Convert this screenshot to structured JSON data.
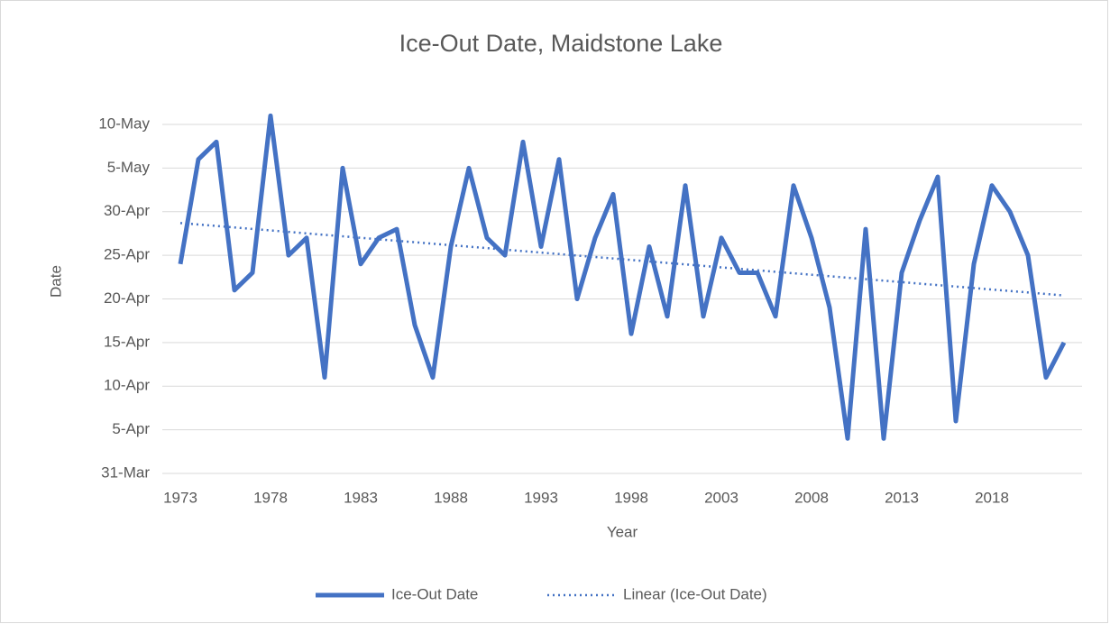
{
  "chart_data": {
    "type": "line",
    "title": "Ice-Out Date, Maidstone Lake",
    "x_label": "Year",
    "y_label": "Date",
    "x": [
      1973,
      1974,
      1975,
      1976,
      1977,
      1978,
      1979,
      1980,
      1981,
      1982,
      1983,
      1984,
      1985,
      1986,
      1987,
      1988,
      1989,
      1990,
      1991,
      1992,
      1993,
      1994,
      1995,
      1996,
      1997,
      1998,
      1999,
      2000,
      2001,
      2002,
      2003,
      2004,
      2005,
      2006,
      2007,
      2008,
      2009,
      2010,
      2011,
      2012,
      2013,
      2014,
      2015,
      2016,
      2017,
      2018,
      2019,
      2020,
      2021,
      2022
    ],
    "series": [
      {
        "name": "Ice-Out Date",
        "color": "#4472c4",
        "values": [
          114,
          126,
          128,
          111,
          113,
          131,
          115,
          117,
          101,
          125,
          114,
          117,
          118,
          107,
          101,
          116,
          125,
          117,
          115,
          128,
          116,
          126,
          110,
          117,
          122,
          106,
          116,
          108,
          123,
          108,
          117,
          113,
          113,
          108,
          123,
          117,
          109,
          94,
          118,
          94,
          113,
          119,
          124,
          96,
          114,
          123,
          120,
          115,
          101,
          105
        ]
      }
    ],
    "trendline": {
      "name": "Linear (Ice-Out Date)",
      "color": "#4472c4",
      "x": [
        1973,
        2022
      ],
      "values": [
        118.7,
        110.4
      ]
    },
    "xlim": [
      1972,
      2023
    ],
    "xticks": [
      1973,
      1978,
      1983,
      1988,
      1993,
      1998,
      2003,
      2008,
      2013,
      2018
    ],
    "ylim": [
      90,
      130
    ],
    "yticks": [
      {
        "value": 90,
        "label": "31-Mar"
      },
      {
        "value": 95,
        "label": "5-Apr"
      },
      {
        "value": 100,
        "label": "10-Apr"
      },
      {
        "value": 105,
        "label": "15-Apr"
      },
      {
        "value": 110,
        "label": "20-Apr"
      },
      {
        "value": 115,
        "label": "25-Apr"
      },
      {
        "value": 120,
        "label": "30-Apr"
      },
      {
        "value": 125,
        "label": "5-May"
      },
      {
        "value": 130,
        "label": "10-May"
      }
    ],
    "grid": true,
    "legend": "bottom"
  }
}
